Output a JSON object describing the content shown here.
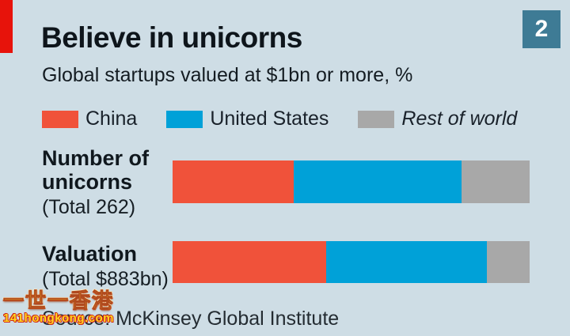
{
  "header": {
    "title": "Believe in unicorns",
    "subtitle": "Global startups valued at $1bn or more, %",
    "badge": "2"
  },
  "legend": [
    {
      "label": "China",
      "color": "#f0523a",
      "italic": false
    },
    {
      "label": "United States",
      "color": "#00a1d8",
      "italic": false
    },
    {
      "label": "Rest of world",
      "color": "#a8a8a8",
      "italic": true
    }
  ],
  "chart_data": {
    "type": "bar",
    "orientation": "horizontal",
    "stacked": true,
    "unit": "%",
    "title": "Believe in unicorns",
    "subtitle": "Global startups valued at $1bn or more, %",
    "categories": [
      "Number of unicorns",
      "Valuation"
    ],
    "category_totals": [
      "(Total 262)",
      "(Total $883bn)"
    ],
    "series": [
      {
        "name": "China",
        "color": "#f0523a",
        "values": [
          34,
          43
        ]
      },
      {
        "name": "United States",
        "color": "#00a1d8",
        "values": [
          47,
          45
        ]
      },
      {
        "name": "Rest of world",
        "color": "#a8a8a8",
        "values": [
          19,
          12
        ]
      }
    ],
    "xlim": [
      0,
      100
    ],
    "legend_position": "top",
    "grid": false
  },
  "source": {
    "label": "Source: McKinsey Global Institute"
  },
  "watermark": {
    "line1": "一世一香港",
    "line2": "141hongkong.com"
  },
  "colors": {
    "background": "#cedde5",
    "accent_red": "#e7130b",
    "badge": "#3e7b95",
    "china": "#f0523a",
    "united_states": "#00a1d8",
    "rest_of_world": "#a8a8a8",
    "text": "#10181e"
  }
}
